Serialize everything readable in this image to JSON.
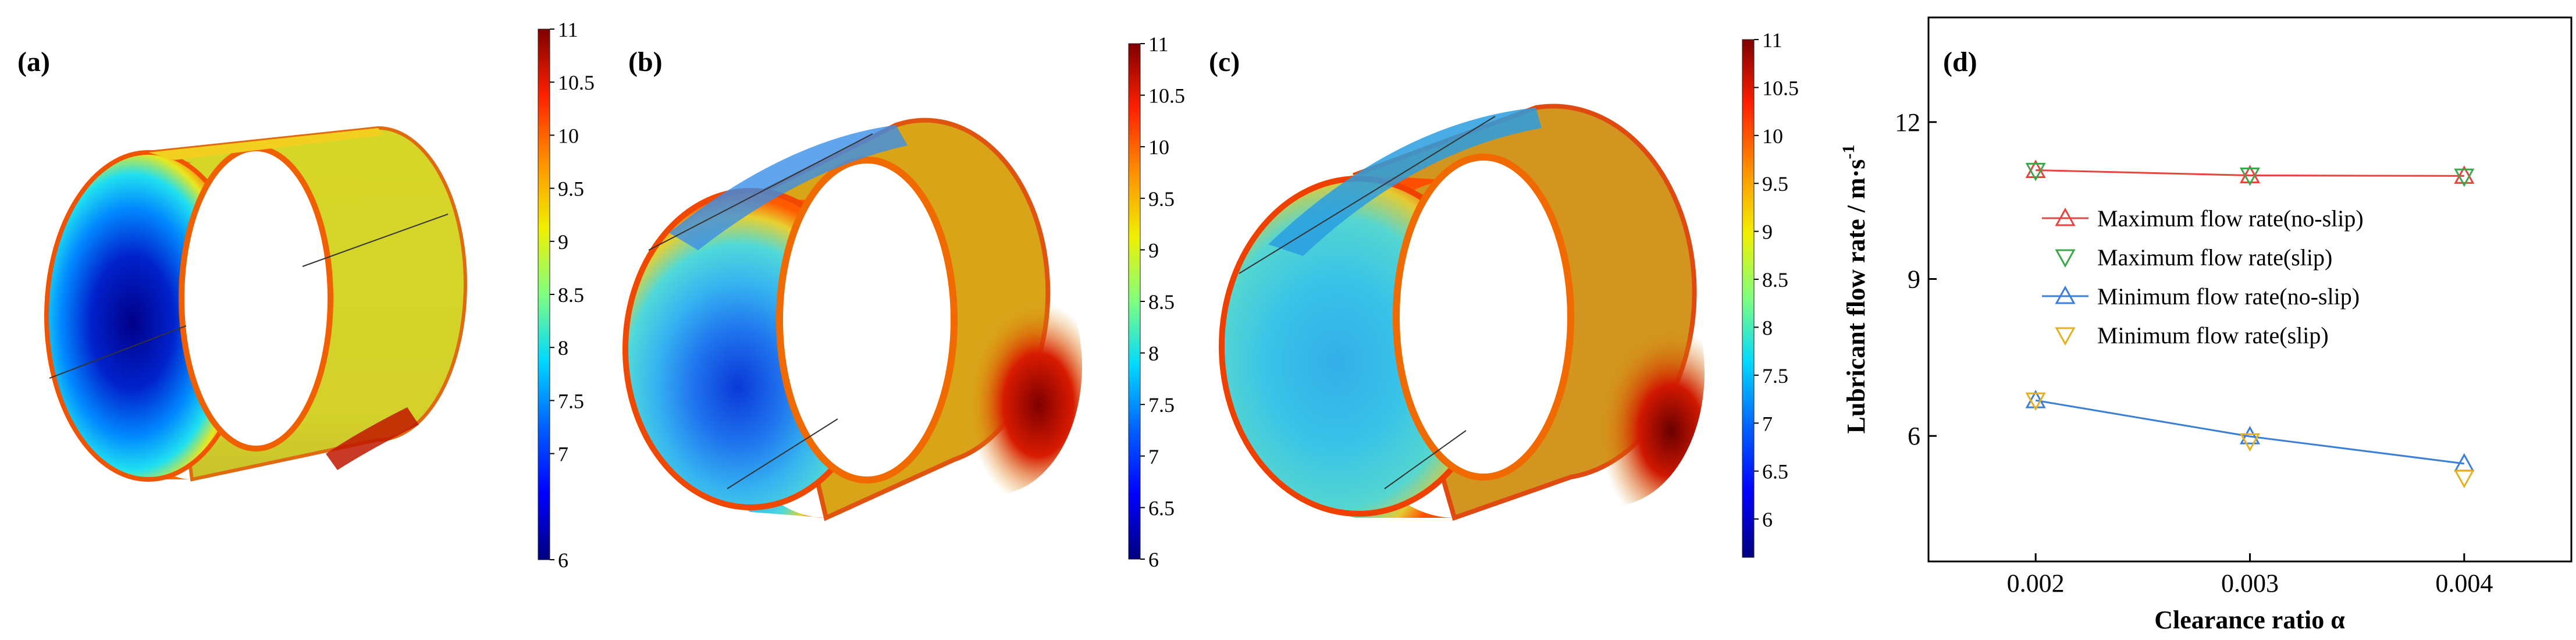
{
  "panels": {
    "a": {
      "label": "(a)"
    },
    "b": {
      "label": "(b)"
    },
    "c": {
      "label": "(c)"
    },
    "d": {
      "label": "(d)"
    }
  },
  "colorbars": [
    {
      "ticks": [
        "11",
        "10.5",
        "10",
        "9.5",
        "9",
        "8.5",
        "8",
        "7.5",
        "7",
        "6"
      ],
      "min": 6,
      "max": 11
    },
    {
      "ticks": [
        "11",
        "10.5",
        "10",
        "9.5",
        "9",
        "8.5",
        "8",
        "7.5",
        "7",
        "6.5",
        "6"
      ],
      "min": 6,
      "max": 11
    },
    {
      "ticks": [
        "11",
        "10.5",
        "10",
        "9.5",
        "9",
        "8.5",
        "8",
        "7.5",
        "7",
        "6.5",
        "6"
      ],
      "min": 5.6,
      "max": 11
    }
  ],
  "colors": {
    "jet_dark_blue": "#00007f",
    "jet_blue": "#0050ff",
    "jet_cyan": "#00e5ff",
    "jet_yellow": "#f2e600",
    "jet_orange": "#ff7a00",
    "jet_dark_red": "#7f0000",
    "max_noslip": "#e8433c",
    "max_slip": "#3aa84a",
    "min_noslip": "#3a7fd5",
    "min_slip": "#e5b020"
  },
  "chart_data": {
    "type": "line",
    "xlabel": "Clearance ratio α",
    "ylabel": "Lubricant flow rate / m·s",
    "ylabel_sup": "-1",
    "x": [
      0.002,
      0.003,
      0.004
    ],
    "x_ticks": [
      "0.002",
      "0.003",
      "0.004"
    ],
    "y_ticks": [
      "6",
      "9",
      "12"
    ],
    "xlim": [
      0.0015,
      0.0045
    ],
    "ylim": [
      3.6,
      14.0
    ],
    "legend_position": "right",
    "series": [
      {
        "name": "Maximum flow rate(no-slip)",
        "values": [
          11.08,
          10.98,
          10.97
        ],
        "color": "#e8433c",
        "marker": "triangle-up",
        "line": true
      },
      {
        "name": "Maximum flow rate(slip)",
        "values": [
          11.07,
          10.98,
          10.96
        ],
        "color": "#3aa84a",
        "marker": "triangle-down",
        "line": false
      },
      {
        "name": "Minimum flow rate(no-slip)",
        "values": [
          6.68,
          5.99,
          5.47
        ],
        "color": "#3a7fd5",
        "marker": "triangle-up",
        "line": true
      },
      {
        "name": "Minimum flow rate(slip)",
        "values": [
          6.68,
          5.9,
          5.2
        ],
        "color": "#e5b020",
        "marker": "triangle-down",
        "line": false
      }
    ]
  }
}
